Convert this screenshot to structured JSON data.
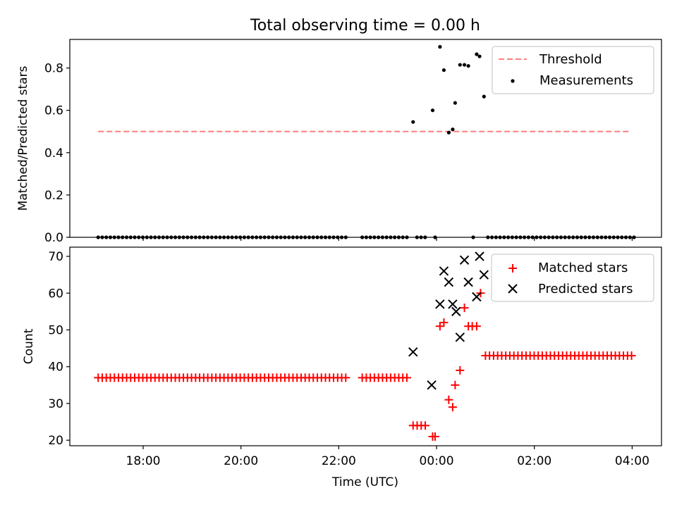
{
  "figure": {
    "title": "Total observing time = 0.00 h"
  },
  "chart_data": [
    {
      "type": "scatter",
      "panel": "top",
      "title": "Total observing time = 0.00 h",
      "xlabel": "",
      "ylabel": "Matched/Predicted stars",
      "xlim": [
        16.5,
        28.6
      ],
      "ylim": [
        0,
        0.935
      ],
      "xticks": [
        {
          "v": 18,
          "label": "18:00"
        },
        {
          "v": 20,
          "label": "20:00"
        },
        {
          "v": 22,
          "label": "22:00"
        },
        {
          "v": 24,
          "label": "00:00"
        },
        {
          "v": 26,
          "label": "02:00"
        },
        {
          "v": 28,
          "label": "04:00"
        }
      ],
      "yticks": [
        {
          "v": 0.0,
          "label": "0.0"
        },
        {
          "v": 0.2,
          "label": "0.2"
        },
        {
          "v": 0.4,
          "label": "0.4"
        },
        {
          "v": 0.6,
          "label": "0.6"
        },
        {
          "v": 0.8,
          "label": "0.8"
        }
      ],
      "grid": false,
      "legend_position": "top-right",
      "threshold": {
        "name": "Threshold",
        "value": 0.5,
        "x_start": 17.08,
        "x_end": 27.98,
        "color": "#ff7f7f",
        "style": "dashed"
      },
      "series": [
        {
          "name": "Measurements",
          "color": "#000000",
          "marker": "dot",
          "points": [
            [
              23.52,
              0.545
            ],
            [
              23.92,
              0.6
            ],
            [
              24.07,
              0.9
            ],
            [
              24.15,
              0.79
            ],
            [
              24.25,
              0.495
            ],
            [
              24.33,
              0.51
            ],
            [
              24.38,
              0.635
            ],
            [
              24.48,
              0.815
            ],
            [
              24.57,
              0.815
            ],
            [
              24.65,
              0.81
            ],
            [
              24.82,
              0.865
            ],
            [
              24.88,
              0.855
            ],
            [
              24.97,
              0.665
            ]
          ],
          "zero_segments": [
            {
              "start": 17.08,
              "end": 22.15,
              "step": 0.083
            },
            {
              "start": 22.48,
              "end": 23.4,
              "step": 0.083
            },
            {
              "start": 23.6,
              "end": 23.8,
              "step": 0.083
            },
            {
              "start": 23.97,
              "end": 23.97,
              "step": 0.083
            },
            {
              "start": 24.75,
              "end": 24.75,
              "step": 0.083
            },
            {
              "start": 25.05,
              "end": 28.05,
              "step": 0.083
            }
          ]
        }
      ]
    },
    {
      "type": "scatter",
      "panel": "bottom",
      "xlabel": "Time (UTC)",
      "ylabel": "Count",
      "xlim": [
        16.5,
        28.6
      ],
      "ylim": [
        18.5,
        72.5
      ],
      "xticks": [
        {
          "v": 18,
          "label": "18:00"
        },
        {
          "v": 20,
          "label": "20:00"
        },
        {
          "v": 22,
          "label": "22:00"
        },
        {
          "v": 24,
          "label": "00:00"
        },
        {
          "v": 26,
          "label": "02:00"
        },
        {
          "v": 28,
          "label": "04:00"
        }
      ],
      "yticks": [
        {
          "v": 20,
          "label": "20"
        },
        {
          "v": 30,
          "label": "30"
        },
        {
          "v": 40,
          "label": "40"
        },
        {
          "v": 50,
          "label": "50"
        },
        {
          "v": 60,
          "label": "60"
        },
        {
          "v": 70,
          "label": "70"
        }
      ],
      "grid": false,
      "legend_position": "top-right",
      "series": [
        {
          "name": "Matched stars",
          "color": "#ff0000",
          "marker": "plus",
          "runs": [
            {
              "start": 17.08,
              "end": 22.15,
              "step": 0.083,
              "value": 37
            },
            {
              "start": 22.48,
              "end": 23.4,
              "step": 0.083,
              "value": 37
            },
            {
              "start": 23.52,
              "end": 23.8,
              "step": 0.083,
              "value": 24
            },
            {
              "start": 23.92,
              "end": 23.97,
              "step": 0.05,
              "value": 21
            },
            {
              "start": 25.0,
              "end": 28.05,
              "step": 0.083,
              "value": 43
            }
          ],
          "points": [
            [
              24.07,
              51
            ],
            [
              24.15,
              52
            ],
            [
              24.25,
              31
            ],
            [
              24.33,
              29
            ],
            [
              24.38,
              35
            ],
            [
              24.48,
              39
            ],
            [
              24.57,
              56
            ],
            [
              24.65,
              51
            ],
            [
              24.73,
              51
            ],
            [
              24.82,
              51
            ],
            [
              24.9,
              60
            ]
          ]
        },
        {
          "name": "Predicted stars",
          "color": "#000000",
          "marker": "x",
          "points": [
            [
              23.52,
              44
            ],
            [
              23.9,
              35
            ],
            [
              24.07,
              57
            ],
            [
              24.15,
              66
            ],
            [
              24.25,
              63
            ],
            [
              24.33,
              57
            ],
            [
              24.4,
              55
            ],
            [
              24.48,
              48
            ],
            [
              24.57,
              69
            ],
            [
              24.65,
              63
            ],
            [
              24.82,
              59
            ],
            [
              24.88,
              70
            ],
            [
              24.97,
              65
            ]
          ]
        }
      ]
    }
  ]
}
